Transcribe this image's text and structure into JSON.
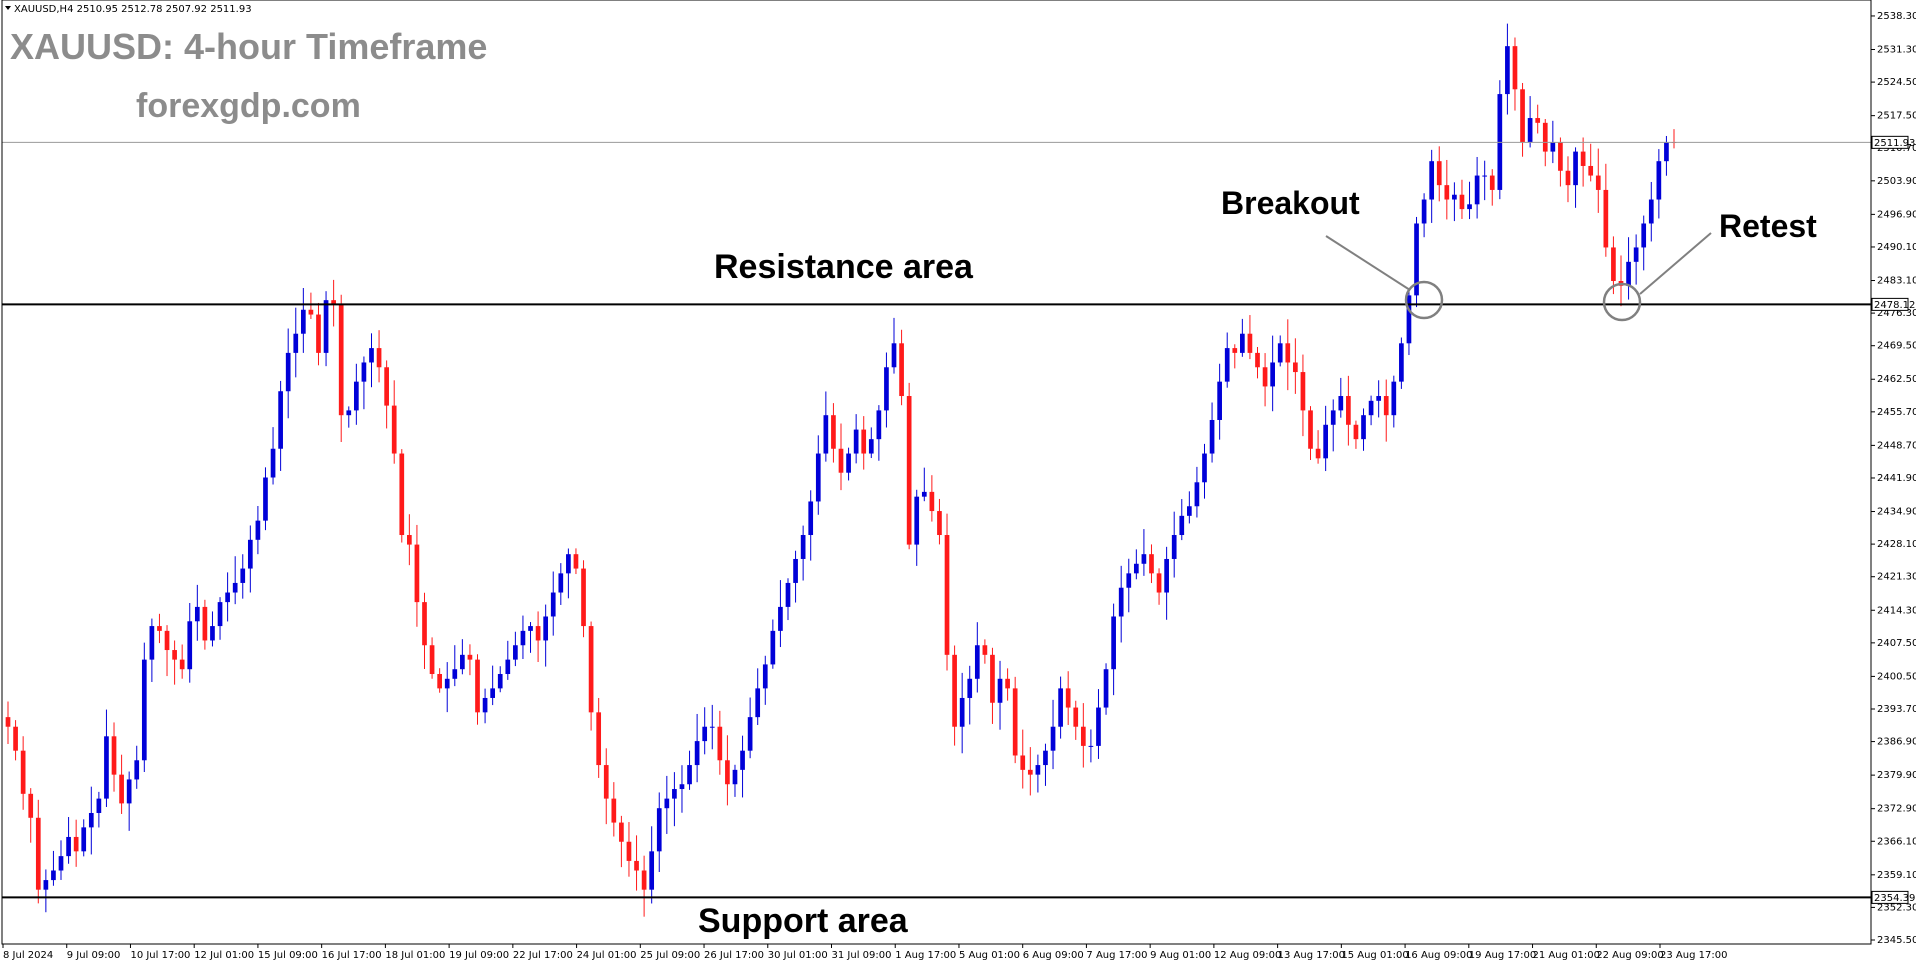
{
  "header": {
    "symbol_info": "XAUUSD,H4  2510.95 2512.78 2507.92 2511.93"
  },
  "overlay": {
    "title": "XAUUSD: 4-hour Timeframe",
    "website": "forexgdp.com"
  },
  "annotations": {
    "resistance": "Resistance area",
    "support": "Support area",
    "breakout": "Breakout",
    "retest": "Retest"
  },
  "colors": {
    "bull": "#0000d8",
    "bear": "#ff1a1a",
    "line": "#000000",
    "grid": "#c8c8c8",
    "title": "#8c8c8c",
    "circle": "#808080"
  },
  "chart_data": {
    "type": "candlestick",
    "symbol": "XAUUSD",
    "timeframe": "H4",
    "ylim": [
      2345.5,
      2538.5
    ],
    "y_ticks": [
      "2538.30",
      "2531.30",
      "2524.50",
      "2517.50",
      "2510.70",
      "2503.90",
      "2496.90",
      "2490.10",
      "2483.10",
      "2476.30",
      "2469.50",
      "2462.50",
      "2455.70",
      "2448.70",
      "2441.90",
      "2434.90",
      "2428.10",
      "2421.30",
      "2414.30",
      "2407.50",
      "2400.50",
      "2393.70",
      "2386.90",
      "2379.90",
      "2372.90",
      "2366.10",
      "2359.10",
      "2352.30",
      "2345.50"
    ],
    "x_labels": [
      "8 Jul 2024",
      "9 Jul 09:00",
      "10 Jul 17:00",
      "12 Jul 01:00",
      "15 Jul 09:00",
      "16 Jul 17:00",
      "18 Jul 01:00",
      "19 Jul 09:00",
      "22 Jul 17:00",
      "24 Jul 01:00",
      "25 Jul 09:00",
      "26 Jul 17:00",
      "30 Jul 01:00",
      "31 Jul 09:00",
      "1 Aug 17:00",
      "5 Aug 01:00",
      "6 Aug 09:00",
      "7 Aug 17:00",
      "9 Aug 01:00",
      "12 Aug 09:00",
      "13 Aug 17:00",
      "15 Aug 01:00",
      "16 Aug 09:00",
      "19 Aug 17:00",
      "21 Aug 01:00",
      "22 Aug 09:00",
      "23 Aug 17:00"
    ],
    "resistance_level": "2478.12",
    "support_level": "2354.39",
    "current_price": "2511.93",
    "closes": [
      2390,
      2385,
      2376,
      2371,
      2356,
      2358,
      2360,
      2363,
      2367,
      2364,
      2369,
      2372,
      2375,
      2388,
      2380,
      2374,
      2379,
      2383,
      2404,
      2411,
      2410,
      2406,
      2404,
      2402,
      2412,
      2415,
      2408,
      2411,
      2416,
      2418,
      2420,
      2423,
      2429,
      2433,
      2442,
      2448,
      2460,
      2468,
      2472,
      2477,
      2476,
      2468,
      2479,
      2478,
      2455,
      2456,
      2462,
      2466,
      2469,
      2465,
      2457,
      2447,
      2430,
      2428,
      2416,
      2407,
      2401,
      2398,
      2400,
      2402,
      2405,
      2404,
      2393,
      2396,
      2398,
      2401,
      2404,
      2407,
      2410,
      2411,
      2408,
      2413,
      2418,
      2422,
      2426,
      2423,
      2411,
      2393,
      2382,
      2375,
      2370,
      2366,
      2362,
      2360,
      2356,
      2364,
      2373,
      2375,
      2377,
      2378,
      2382,
      2387,
      2390,
      2390,
      2383,
      2378,
      2381,
      2385,
      2392,
      2398,
      2403,
      2410,
      2415,
      2420,
      2425,
      2430,
      2437,
      2447,
      2455,
      2448,
      2443,
      2447,
      2452,
      2447,
      2450,
      2456,
      2465,
      2470,
      2459,
      2428,
      2438,
      2439,
      2435,
      2430,
      2405,
      2390,
      2396,
      2400,
      2407,
      2405,
      2395,
      2400,
      2398,
      2384,
      2381,
      2380,
      2382,
      2385,
      2390,
      2398,
      2394,
      2390,
      2386,
      2386,
      2394,
      2402,
      2413,
      2419,
      2422,
      2424,
      2426,
      2422,
      2418,
      2425,
      2430,
      2434,
      2436,
      2441,
      2447,
      2454,
      2462,
      2469,
      2468,
      2472,
      2468,
      2465,
      2461,
      2466,
      2470,
      2466,
      2464,
      2456,
      2448,
      2446,
      2453,
      2456,
      2459,
      2453,
      2450,
      2455,
      2458,
      2459,
      2455,
      2462,
      2470,
      2480,
      2495,
      2500,
      2508,
      2503,
      2500,
      2501,
      2498,
      2499,
      2505,
      2505,
      2502,
      2522,
      2532,
      2523,
      2512,
      2517,
      2516,
      2510,
      2512,
      2506,
      2503,
      2510,
      2507,
      2505,
      2502,
      2490,
      2483,
      2482,
      2487,
      2490,
      2495,
      2500,
      2508,
      2512,
      2511.93
    ],
    "grid": false,
    "legend": "none"
  }
}
